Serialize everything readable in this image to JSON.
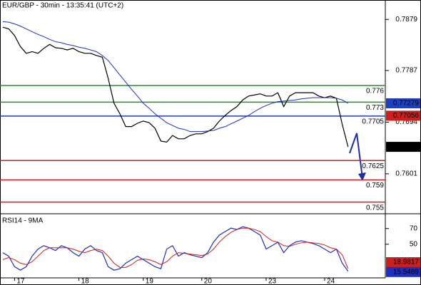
{
  "chart_data": [
    {
      "type": "line",
      "title": "EUR/GBP - 30min - 13:35:41 (UTC+2)",
      "ylim": [
        0.7529,
        0.7914
      ],
      "yticks": [
        0.7879,
        0.7787,
        0.7694,
        0.7601
      ],
      "series": [
        {
          "color": "#000000",
          "values": [
            0.7865,
            0.7862,
            0.785,
            0.783,
            0.7818,
            0.7821,
            0.7818,
            0.7827,
            0.7834,
            0.7828,
            0.7827,
            0.7824,
            0.7827,
            0.7821,
            0.7818,
            0.7818,
            0.7814,
            0.7811,
            0.7773,
            0.7728,
            0.7709,
            0.7686,
            0.7686,
            0.7692,
            0.7696,
            0.7693,
            0.7683,
            0.766,
            0.7658,
            0.767,
            0.7664,
            0.7664,
            0.767,
            0.7673,
            0.7673,
            0.7677,
            0.7683,
            0.7696,
            0.7706,
            0.7715,
            0.7722,
            0.7734,
            0.7741,
            0.7743,
            0.7745,
            0.7741,
            0.7741,
            0.7747,
            0.7722,
            0.7741,
            0.7747,
            0.7747,
            0.7747,
            0.7747,
            0.7741,
            0.7738,
            0.7741,
            0.7737,
            0.769,
            0.76495
          ]
        },
        {
          "color": "#1f2fbf",
          "values": [
            0.7875,
            0.7874,
            0.7871,
            0.7867,
            0.7862,
            0.7857,
            0.7852,
            0.7848,
            0.7843,
            0.7839,
            0.7837,
            0.7834,
            0.7832,
            0.7829,
            0.7827,
            0.7824,
            0.7821,
            0.7814,
            0.7805,
            0.7792,
            0.7779,
            0.7766,
            0.7753,
            0.7741,
            0.7728,
            0.7719,
            0.7709,
            0.7701,
            0.7693,
            0.7688,
            0.7683,
            0.7681,
            0.7677,
            0.7677,
            0.7677,
            0.7678,
            0.7679,
            0.7683,
            0.7686,
            0.7691,
            0.7696,
            0.7701,
            0.7706,
            0.7713,
            0.7719,
            0.7724,
            0.7728,
            0.7731,
            0.7732,
            0.7733,
            0.7734,
            0.7736,
            0.7737,
            0.7738,
            0.7738,
            0.7738,
            0.7738,
            0.7737,
            0.7734,
            0.7728
          ]
        }
      ],
      "levels": [
        {
          "value": 0.776,
          "color": "#2e8b2e"
        },
        {
          "value": 0.773,
          "color": "#2e8b2e"
        },
        {
          "value": 0.7705,
          "color": "#1f3fbf"
        },
        {
          "value": 0.7625,
          "color": "#cc1f1f"
        },
        {
          "value": 0.759,
          "color": "#cc1f1f"
        },
        {
          "value": 0.755,
          "color": "#cc1f1f"
        }
      ],
      "price_markers": [
        {
          "value": 0.77279,
          "color": "#1f3fbf"
        },
        {
          "value": 0.77056,
          "color": "#cc1f1f"
        },
        {
          "value": 0.76495,
          "color": "#000000"
        }
      ]
    },
    {
      "type": "line",
      "title": "RSI14 - 9MA",
      "categories": [
        null,
        null,
        "17",
        null,
        null,
        null,
        null,
        null,
        null,
        null,
        null,
        null,
        null,
        "18",
        null,
        null,
        null,
        null,
        null,
        null,
        null,
        null,
        null,
        null,
        "19",
        null,
        null,
        null,
        null,
        null,
        null,
        null,
        null,
        null,
        "20",
        null,
        null,
        null,
        null,
        null,
        null,
        null,
        null,
        null,
        null,
        "23",
        null,
        null,
        null,
        null,
        null,
        null,
        null,
        null,
        null,
        "24",
        null,
        null,
        null,
        null
      ],
      "ylim": [
        9,
        87
      ],
      "yticks": [
        70,
        50
      ],
      "series": [
        {
          "color": "#1f2fbf",
          "values": [
            39.3,
            34.8,
            21.4,
            17.0,
            21.4,
            34.8,
            43.8,
            48.2,
            45.5,
            42.0,
            48.2,
            45.5,
            39.3,
            34.8,
            43.8,
            48.2,
            42.0,
            39.3,
            21.4,
            17.0,
            18.8,
            25.9,
            30.4,
            34.8,
            30.4,
            25.9,
            21.4,
            18.8,
            43.8,
            48.2,
            34.8,
            39.3,
            36.6,
            34.8,
            33.0,
            39.3,
            52.7,
            61.6,
            66.1,
            70.5,
            68.8,
            72.3,
            70.5,
            66.1,
            61.6,
            43.8,
            48.2,
            52.7,
            39.3,
            48.2,
            52.7,
            54.5,
            52.7,
            50.9,
            48.2,
            43.8,
            39.3,
            43.8,
            25.9,
            15.5489
          ]
        },
        {
          "color": "#cc1f1f",
          "values": [
            30.4,
            33.0,
            30.4,
            25.9,
            24.1,
            27.7,
            34.8,
            42.0,
            45.5,
            45.5,
            45.5,
            45.5,
            43.8,
            41.1,
            39.3,
            42.0,
            43.8,
            42.0,
            34.8,
            25.9,
            20.5,
            20.5,
            24.1,
            29.5,
            31.3,
            30.4,
            27.7,
            24.1,
            27.7,
            34.8,
            39.3,
            38.4,
            37.5,
            36.6,
            35.7,
            37.5,
            43.8,
            52.7,
            59.8,
            65.2,
            68.8,
            70.5,
            70.5,
            68.8,
            66.1,
            59.8,
            54.5,
            52.7,
            48.2,
            47.3,
            50.0,
            51.8,
            52.7,
            51.8,
            50.9,
            49.1,
            45.5,
            43.8,
            36.6,
            18.9817
          ]
        }
      ]
    }
  ]
}
